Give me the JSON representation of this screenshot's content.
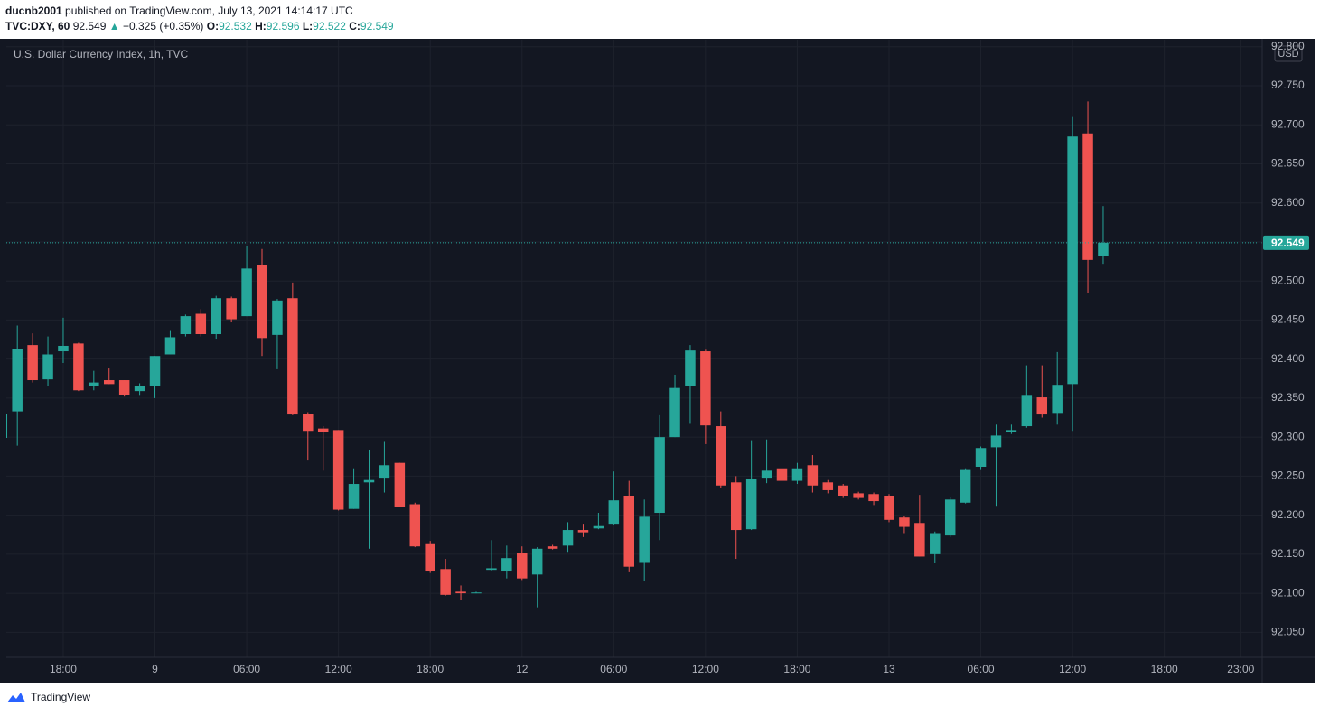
{
  "header": {
    "user": "ducnb2001",
    "published": "published on TradingView.com, July 13, 2021 14:14:17 UTC",
    "symbol": "TVC:DXY, 60",
    "arrow": "▲",
    "change": "+0.325 (+0.35%)",
    "o": "O:",
    "h": "H:",
    "l": "L:",
    "c": "C:"
  },
  "footer": {
    "brand": "TradingView"
  },
  "chart_data": {
    "type": "candlestick",
    "title": "U.S. Dollar Currency Index, 1h, TVC",
    "currency": "USD",
    "up_color": "#26a69a",
    "down_color": "#ef5350",
    "grid": true,
    "open": [
      92.299,
      92.333,
      92.418,
      92.374,
      92.41,
      92.42,
      92.365,
      92.373,
      92.373,
      92.359,
      92.365,
      92.406,
      92.432,
      92.458,
      92.432,
      92.478,
      92.455,
      92.52,
      92.431,
      92.478,
      92.33,
      92.311,
      92.309,
      92.208,
      92.242,
      92.248,
      92.267,
      92.214,
      92.164,
      92.131,
      92.102,
      92.1,
      92.13,
      92.129,
      92.152,
      92.124,
      92.16,
      92.161,
      92.181,
      92.183,
      92.189,
      92.225,
      92.14,
      92.203,
      92.3,
      92.365,
      92.41,
      92.314,
      92.242,
      92.182,
      92.248,
      92.26,
      92.244,
      92.264,
      92.242,
      92.238,
      92.228,
      92.227,
      92.225,
      92.197,
      92.19,
      92.15,
      92.174,
      92.216,
      92.262,
      92.287,
      92.306,
      92.314,
      92.351,
      92.331,
      92.368,
      92.689,
      92.532
    ],
    "high": [
      92.33,
      92.443,
      92.433,
      92.429,
      92.453,
      92.421,
      92.385,
      92.388,
      92.373,
      92.369,
      92.404,
      92.436,
      92.457,
      92.464,
      92.481,
      92.48,
      92.545,
      92.541,
      92.477,
      92.498,
      92.332,
      92.314,
      92.309,
      92.26,
      92.284,
      92.295,
      92.267,
      92.216,
      92.167,
      92.144,
      92.11,
      92.102,
      92.168,
      92.161,
      92.16,
      92.159,
      92.162,
      92.191,
      92.189,
      92.203,
      92.256,
      92.244,
      92.22,
      92.328,
      92.38,
      92.418,
      92.412,
      92.333,
      92.25,
      92.296,
      92.297,
      92.27,
      92.267,
      92.277,
      92.245,
      92.24,
      92.23,
      92.229,
      92.227,
      92.199,
      92.226,
      92.179,
      92.223,
      92.26,
      92.288,
      92.316,
      92.316,
      92.392,
      92.392,
      92.409,
      92.71,
      92.73,
      92.596
    ],
    "low": [
      92.297,
      92.289,
      92.37,
      92.365,
      92.395,
      92.359,
      92.36,
      92.368,
      92.352,
      92.353,
      92.35,
      92.406,
      92.429,
      92.429,
      92.425,
      92.447,
      92.455,
      92.404,
      92.387,
      92.328,
      92.27,
      92.257,
      92.206,
      92.208,
      92.157,
      92.229,
      92.21,
      92.159,
      92.126,
      92.097,
      92.091,
      92.1,
      92.129,
      92.119,
      92.117,
      92.082,
      92.156,
      92.153,
      92.172,
      92.182,
      92.187,
      92.128,
      92.116,
      92.168,
      92.3,
      92.317,
      92.291,
      92.235,
      92.144,
      92.181,
      92.241,
      92.235,
      92.24,
      92.229,
      92.228,
      92.222,
      92.22,
      92.213,
      92.191,
      92.177,
      92.147,
      92.139,
      92.172,
      92.215,
      92.259,
      92.212,
      92.304,
      92.312,
      92.325,
      92.316,
      92.308,
      92.484,
      92.522
    ],
    "close": [
      92.33,
      92.413,
      92.373,
      92.406,
      92.417,
      92.36,
      92.37,
      92.368,
      92.354,
      92.365,
      92.404,
      92.428,
      92.455,
      92.432,
      92.478,
      92.451,
      92.516,
      92.427,
      92.475,
      92.329,
      92.308,
      92.306,
      92.207,
      92.24,
      92.245,
      92.264,
      92.211,
      92.16,
      92.129,
      92.098,
      92.1,
      92.101,
      92.132,
      92.145,
      92.119,
      92.157,
      92.157,
      92.181,
      92.178,
      92.186,
      92.219,
      92.134,
      92.198,
      92.3,
      92.363,
      92.411,
      92.315,
      92.238,
      92.181,
      92.247,
      92.257,
      92.244,
      92.26,
      92.238,
      92.232,
      92.225,
      92.222,
      92.218,
      92.194,
      92.185,
      92.147,
      92.177,
      92.22,
      92.259,
      92.286,
      92.302,
      92.309,
      92.353,
      92.329,
      92.367,
      92.685,
      92.527,
      92.549
    ],
    "xlim": [
      0.28,
      82.4
    ],
    "xticks": [
      {
        "value": 4,
        "label": "18:00"
      },
      {
        "value": 10,
        "label": "9"
      },
      {
        "value": 16,
        "label": "06:00"
      },
      {
        "value": 22,
        "label": "12:00"
      },
      {
        "value": 28,
        "label": "18:00"
      },
      {
        "value": 34,
        "label": "12"
      },
      {
        "value": 40,
        "label": "06:00"
      },
      {
        "value": 46,
        "label": "12:00"
      },
      {
        "value": 52,
        "label": "18:00"
      },
      {
        "value": 58,
        "label": "13"
      },
      {
        "value": 64,
        "label": "06:00"
      },
      {
        "value": 70,
        "label": "12:00"
      },
      {
        "value": 76,
        "label": "18:00"
      },
      {
        "value": 81,
        "label": "23:00"
      }
    ],
    "ylim": [
      92.018,
      92.809
    ],
    "yticks": [
      {
        "value": 92.05,
        "label": "92.050"
      },
      {
        "value": 92.1,
        "label": "92.100"
      },
      {
        "value": 92.15,
        "label": "92.150"
      },
      {
        "value": 92.2,
        "label": "92.200"
      },
      {
        "value": 92.25,
        "label": "92.250"
      },
      {
        "value": 92.3,
        "label": "92.300"
      },
      {
        "value": 92.35,
        "label": "92.350"
      },
      {
        "value": 92.4,
        "label": "92.400"
      },
      {
        "value": 92.45,
        "label": "92.450"
      },
      {
        "value": 92.5,
        "label": "92.500"
      },
      {
        "value": 92.55,
        "label": "92.550"
      },
      {
        "value": 92.6,
        "label": "92.600"
      },
      {
        "value": 92.65,
        "label": "92.650"
      },
      {
        "value": 92.7,
        "label": "92.700"
      },
      {
        "value": 92.75,
        "label": "92.750"
      },
      {
        "value": 92.8,
        "label": "92.800"
      }
    ]
  }
}
